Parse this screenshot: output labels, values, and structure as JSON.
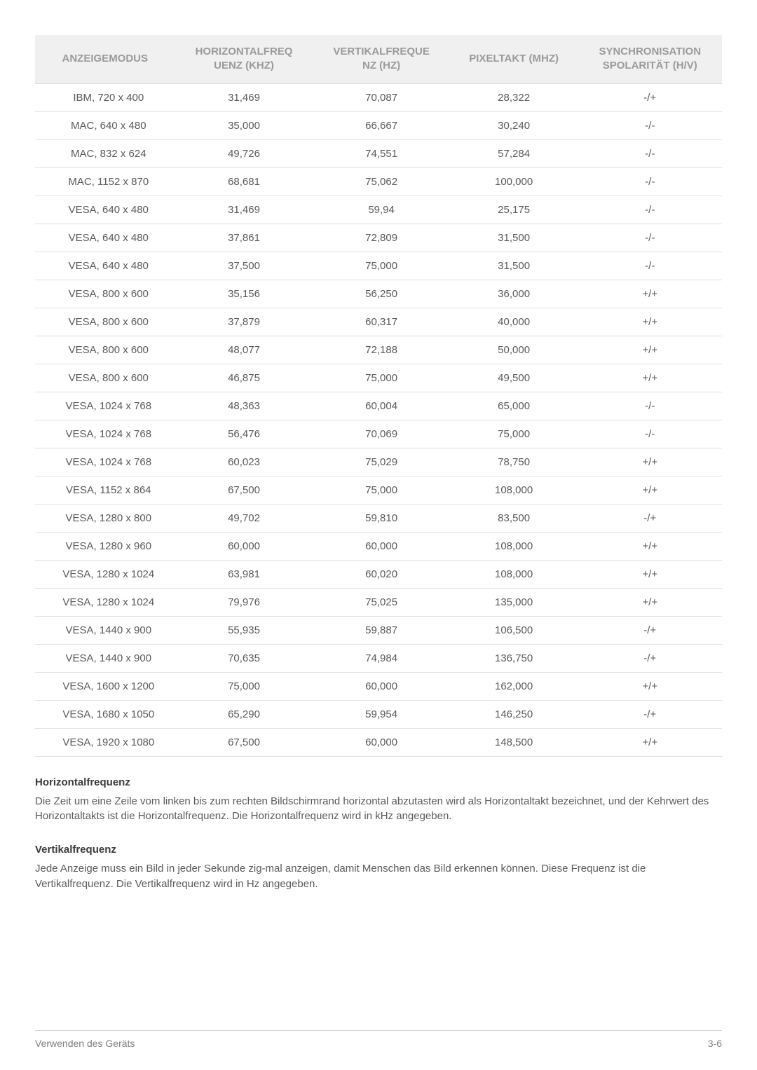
{
  "table": {
    "columns": [
      "ANZEIGEMODUS",
      "HORIZONTALFREQUENZ (KHZ)",
      "VERTIKALFREQUENZ (HZ)",
      "PIXELTAKT (MHZ)",
      "SYNCHRONISATIONSPOLARITÄT (H/V)"
    ],
    "header_bg": "#f0f0f0",
    "header_color": "#9a9a9a",
    "border_color": "#e0e0e0",
    "text_color": "#5a5a5a",
    "fontsize": 15,
    "rows": [
      [
        "IBM, 720 x 400",
        "31,469",
        "70,087",
        "28,322",
        "-/+"
      ],
      [
        "MAC, 640 x 480",
        "35,000",
        "66,667",
        "30,240",
        "-/-"
      ],
      [
        "MAC, 832 x 624",
        "49,726",
        "74,551",
        "57,284",
        "-/-"
      ],
      [
        "MAC, 1152 x 870",
        "68,681",
        "75,062",
        "100,000",
        "-/-"
      ],
      [
        "VESA, 640 x 480",
        "31,469",
        "59,94",
        "25,175",
        "-/-"
      ],
      [
        "VESA, 640 x 480",
        "37,861",
        "72,809",
        "31,500",
        "-/-"
      ],
      [
        "VESA, 640 x 480",
        "37,500",
        "75,000",
        "31,500",
        "-/-"
      ],
      [
        "VESA, 800 x 600",
        "35,156",
        "56,250",
        "36,000",
        "+/+"
      ],
      [
        "VESA, 800 x 600",
        "37,879",
        "60,317",
        "40,000",
        "+/+"
      ],
      [
        "VESA, 800 x 600",
        "48,077",
        "72,188",
        "50,000",
        "+/+"
      ],
      [
        "VESA, 800 x 600",
        "46,875",
        "75,000",
        "49,500",
        "+/+"
      ],
      [
        "VESA, 1024 x 768",
        "48,363",
        "60,004",
        "65,000",
        "-/-"
      ],
      [
        "VESA, 1024 x 768",
        "56,476",
        "70,069",
        "75,000",
        "-/-"
      ],
      [
        "VESA, 1024 x 768",
        "60,023",
        "75,029",
        "78,750",
        "+/+"
      ],
      [
        "VESA, 1152 x 864",
        "67,500",
        "75,000",
        "108,000",
        "+/+"
      ],
      [
        "VESA, 1280 x 800",
        "49,702",
        "59,810",
        "83,500",
        "-/+"
      ],
      [
        "VESA, 1280 x 960",
        "60,000",
        "60,000",
        "108,000",
        "+/+"
      ],
      [
        "VESA, 1280 x 1024",
        "63,981",
        "60,020",
        "108,000",
        "+/+"
      ],
      [
        "VESA, 1280 x 1024",
        "79,976",
        "75,025",
        "135,000",
        "+/+"
      ],
      [
        "VESA, 1440 x 900",
        "55,935",
        "59,887",
        "106,500",
        "-/+"
      ],
      [
        "VESA, 1440 x 900",
        "70,635",
        "74,984",
        "136,750",
        "-/+"
      ],
      [
        "VESA, 1600 x 1200",
        "75,000",
        "60,000",
        "162,000",
        "+/+"
      ],
      [
        "VESA, 1680 x 1050",
        "65,290",
        "59,954",
        "146,250",
        "-/+"
      ],
      [
        "VESA, 1920 x 1080",
        "67,500",
        "60,000",
        "148,500",
        "+/+"
      ]
    ]
  },
  "sections": {
    "hfreq_title": "Horizontalfrequenz",
    "hfreq_text": "Die Zeit um eine Zeile vom linken bis zum rechten Bildschirmrand horizontal abzutasten wird als Horizontaltakt bezeichnet, und der Kehrwert des Horizontaltakts ist die Horizontalfrequenz. Die Horizontalfrequenz wird in kHz angegeben.",
    "vfreq_title": "Vertikalfrequenz",
    "vfreq_text": "Jede Anzeige muss ein Bild in jeder Sekunde zig-mal anzeigen, damit Menschen das Bild erkennen können. Diese Frequenz ist die Vertikalfrequenz. Die Vertikalfrequenz wird in Hz angegeben."
  },
  "footer": {
    "left": "Verwenden des Geräts",
    "right": "3-6"
  },
  "colors": {
    "background": "#ffffff",
    "heading_color": "#3a3a3a",
    "body_color": "#5a5a5a",
    "footer_color": "#808080",
    "footer_border": "#d0d0d0"
  }
}
